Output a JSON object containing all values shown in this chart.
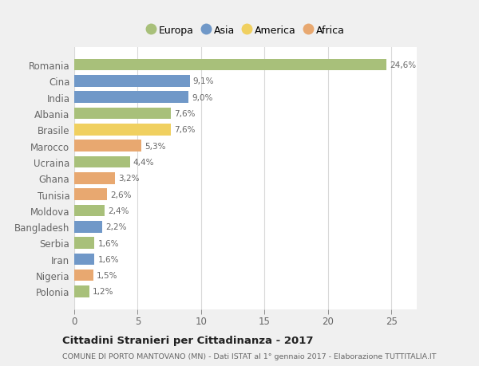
{
  "countries": [
    "Romania",
    "Cina",
    "India",
    "Albania",
    "Brasile",
    "Marocco",
    "Ucraina",
    "Ghana",
    "Tunisia",
    "Moldova",
    "Bangladesh",
    "Serbia",
    "Iran",
    "Nigeria",
    "Polonia"
  ],
  "values": [
    24.6,
    9.1,
    9.0,
    7.6,
    7.6,
    5.3,
    4.4,
    3.2,
    2.6,
    2.4,
    2.2,
    1.6,
    1.6,
    1.5,
    1.2
  ],
  "labels": [
    "24,6%",
    "9,1%",
    "9,0%",
    "7,6%",
    "7,6%",
    "5,3%",
    "4,4%",
    "3,2%",
    "2,6%",
    "2,4%",
    "2,2%",
    "1,6%",
    "1,6%",
    "1,5%",
    "1,2%"
  ],
  "continents": [
    "Europa",
    "Asia",
    "Asia",
    "Europa",
    "America",
    "Africa",
    "Europa",
    "Africa",
    "Africa",
    "Europa",
    "Asia",
    "Europa",
    "Asia",
    "Africa",
    "Europa"
  ],
  "colors": {
    "Europa": "#a8c07a",
    "Asia": "#7098c8",
    "America": "#f0d060",
    "Africa": "#e8a870"
  },
  "legend_order": [
    "Europa",
    "Asia",
    "America",
    "Africa"
  ],
  "title": "Cittadini Stranieri per Cittadinanza - 2017",
  "subtitle": "COMUNE DI PORTO MANTOVANO (MN) - Dati ISTAT al 1° gennaio 2017 - Elaborazione TUTTITALIA.IT",
  "xlim": [
    0,
    27
  ],
  "xticks": [
    0,
    5,
    10,
    15,
    20,
    25
  ],
  "bg_color": "#f0f0f0",
  "plot_bg_color": "#ffffff",
  "grid_color": "#d8d8d8",
  "label_color": "#666666",
  "title_color": "#222222",
  "subtitle_color": "#666666"
}
